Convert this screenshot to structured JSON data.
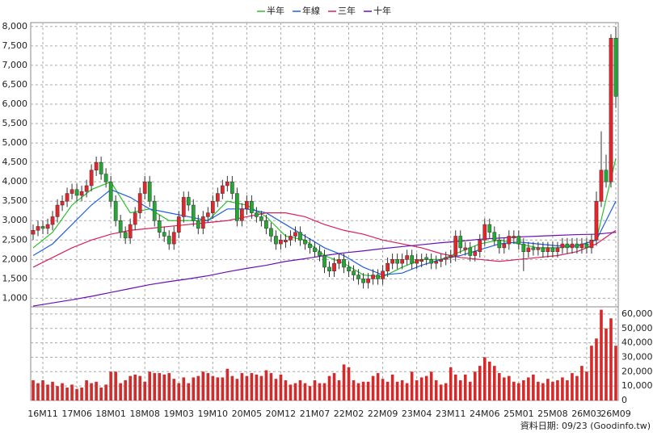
{
  "chart_data": {
    "type": "candlestick",
    "up_color": "#e8242a",
    "down_color": "#23a832",
    "volume_color": "#d42a2a",
    "grid": true,
    "xlim": [
      -0.5,
      120.5
    ],
    "xticks": [
      {
        "value": 2,
        "label": "16M11"
      },
      {
        "value": 9,
        "label": "17M06"
      },
      {
        "value": 16,
        "label": "18M01"
      },
      {
        "value": 23,
        "label": "18M08"
      },
      {
        "value": 30,
        "label": "19M03"
      },
      {
        "value": 37,
        "label": "19M10"
      },
      {
        "value": 44,
        "label": "20M05"
      },
      {
        "value": 51,
        "label": "20M12"
      },
      {
        "value": 58,
        "label": "21M07"
      },
      {
        "value": 65,
        "label": "22M02"
      },
      {
        "value": 72,
        "label": "22M09"
      },
      {
        "value": 79,
        "label": "23M04"
      },
      {
        "value": 86,
        "label": "23M11"
      },
      {
        "value": 93,
        "label": "24M06"
      },
      {
        "value": 100,
        "label": "25M01"
      },
      {
        "value": 107,
        "label": "25M08"
      },
      {
        "value": 114,
        "label": "26M03"
      },
      {
        "value": 120,
        "label": "26M09"
      }
    ],
    "ylim": [
      780,
      8100
    ],
    "yticks": [
      {
        "value": 1000,
        "label": "1,000"
      },
      {
        "value": 1500,
        "label": "1,500"
      },
      {
        "value": 2000,
        "label": "2,000"
      },
      {
        "value": 2500,
        "label": "2,500"
      },
      {
        "value": 3000,
        "label": "3,000"
      },
      {
        "value": 3500,
        "label": "3,500"
      },
      {
        "value": 4000,
        "label": "4,000"
      },
      {
        "value": 4500,
        "label": "4,500"
      },
      {
        "value": 5000,
        "label": "5,000"
      },
      {
        "value": 5500,
        "label": "5,500"
      },
      {
        "value": 6000,
        "label": "6,000"
      },
      {
        "value": 6500,
        "label": "6,500"
      },
      {
        "value": 7000,
        "label": "7,000"
      },
      {
        "value": 7500,
        "label": "7,500"
      },
      {
        "value": 8000,
        "label": "8,000"
      }
    ],
    "y2lim": [
      0,
      65000
    ],
    "y2ticks": [
      0,
      {
        "value": 10000,
        "label": "10,000"
      },
      {
        "value": 20000,
        "label": "20,000"
      },
      {
        "value": 30000,
        "label": "30,000"
      },
      {
        "value": 40000,
        "label": "40,000"
      },
      {
        "value": 50000,
        "label": "50,000"
      },
      {
        "value": 60000,
        "label": "60,000"
      }
    ],
    "candles": [
      [
        2650,
        2900,
        2500,
        2750
      ],
      [
        2750,
        3000,
        2600,
        2850
      ],
      [
        2850,
        3000,
        2650,
        2800
      ],
      [
        2800,
        3050,
        2650,
        2900
      ],
      [
        2900,
        3250,
        2750,
        3100
      ],
      [
        3100,
        3550,
        2950,
        3400
      ],
      [
        3400,
        3650,
        3250,
        3500
      ],
      [
        3500,
        3850,
        3350,
        3700
      ],
      [
        3700,
        3950,
        3550,
        3800
      ],
      [
        3800,
        3950,
        3500,
        3650
      ],
      [
        3650,
        3900,
        3500,
        3750
      ],
      [
        3750,
        4050,
        3600,
        3900
      ],
      [
        3900,
        4450,
        3750,
        4300
      ],
      [
        4300,
        4650,
        4150,
        4500
      ],
      [
        4500,
        4650,
        4050,
        4200
      ],
      [
        4200,
        4350,
        3850,
        4000
      ],
      [
        4000,
        4150,
        3350,
        3500
      ],
      [
        3500,
        3650,
        2850,
        3000
      ],
      [
        3000,
        3150,
        2550,
        2700
      ],
      [
        2700,
        2850,
        2400,
        2550
      ],
      [
        2550,
        3050,
        2400,
        2900
      ],
      [
        2900,
        3350,
        2750,
        3200
      ],
      [
        3200,
        3850,
        3050,
        3700
      ],
      [
        3700,
        4150,
        3550,
        4000
      ],
      [
        4000,
        4150,
        3350,
        3500
      ],
      [
        3500,
        3650,
        2850,
        3000
      ],
      [
        3000,
        3150,
        2550,
        2700
      ],
      [
        2700,
        2850,
        2450,
        2600
      ],
      [
        2600,
        2750,
        2250,
        2400
      ],
      [
        2400,
        2850,
        2250,
        2700
      ],
      [
        2700,
        3250,
        2550,
        3100
      ],
      [
        3100,
        3750,
        2950,
        3600
      ],
      [
        3600,
        3750,
        3250,
        3400
      ],
      [
        3400,
        3550,
        2850,
        3000
      ],
      [
        3000,
        3150,
        2650,
        2800
      ],
      [
        2800,
        3250,
        2650,
        3100
      ],
      [
        3100,
        3350,
        2950,
        3200
      ],
      [
        3200,
        3650,
        3050,
        3500
      ],
      [
        3500,
        3850,
        3350,
        3700
      ],
      [
        3700,
        4050,
        3550,
        3900
      ],
      [
        3900,
        4150,
        3750,
        4000
      ],
      [
        4000,
        4150,
        3550,
        3700
      ],
      [
        3700,
        3850,
        2850,
        3000
      ],
      [
        3000,
        3450,
        2850,
        3300
      ],
      [
        3300,
        3650,
        3150,
        3500
      ],
      [
        3500,
        3650,
        3050,
        3200
      ],
      [
        3200,
        3350,
        2950,
        3100
      ],
      [
        3100,
        3250,
        2850,
        3000
      ],
      [
        3000,
        3150,
        2650,
        2800
      ],
      [
        2800,
        2950,
        2450,
        2600
      ],
      [
        2600,
        2750,
        2250,
        2400
      ],
      [
        2400,
        2650,
        2250,
        2500
      ],
      [
        2450,
        2650,
        2300,
        2500
      ],
      [
        2500,
        2750,
        2350,
        2600
      ],
      [
        2600,
        2850,
        2450,
        2700
      ],
      [
        2700,
        2850,
        2350,
        2500
      ],
      [
        2500,
        2650,
        2250,
        2400
      ],
      [
        2400,
        2550,
        2150,
        2300
      ],
      [
        2300,
        2450,
        2050,
        2200
      ],
      [
        2200,
        2350,
        1950,
        2100
      ],
      [
        2100,
        2250,
        1650,
        1800
      ],
      [
        1800,
        1950,
        1550,
        1700
      ],
      [
        1700,
        2050,
        1550,
        1900
      ],
      [
        1900,
        2150,
        1750,
        2000
      ],
      [
        2000,
        2150,
        1650,
        1800
      ],
      [
        1800,
        1950,
        1550,
        1700
      ],
      [
        1700,
        1850,
        1450,
        1600
      ],
      [
        1600,
        1750,
        1350,
        1500
      ],
      [
        1500,
        1650,
        1250,
        1400
      ],
      [
        1400,
        1650,
        1250,
        1500
      ],
      [
        1500,
        1750,
        1350,
        1600
      ],
      [
        1600,
        1750,
        1350,
        1500
      ],
      [
        1500,
        1850,
        1350,
        1700
      ],
      [
        1700,
        2050,
        1550,
        1900
      ],
      [
        1900,
        2150,
        1750,
        2000
      ],
      [
        2000,
        2150,
        1750,
        1900
      ],
      [
        1900,
        2150,
        1750,
        2000
      ],
      [
        2000,
        2250,
        1850,
        2100
      ],
      [
        2100,
        2250,
        1750,
        1900
      ],
      [
        1900,
        2150,
        1750,
        2000
      ],
      [
        1950,
        2150,
        1800,
        2000
      ],
      [
        2050,
        2150,
        1850,
        2000
      ],
      [
        2000,
        2150,
        1750,
        1900
      ],
      [
        1900,
        2100,
        1750,
        1950
      ],
      [
        1950,
        2150,
        1800,
        2000
      ],
      [
        2000,
        2200,
        1850,
        2050
      ],
      [
        2050,
        2250,
        1900,
        2100
      ],
      [
        2100,
        2750,
        1950,
        2600
      ],
      [
        2600,
        2750,
        2150,
        2300
      ],
      [
        2250,
        2450,
        2100,
        2300
      ],
      [
        2300,
        2450,
        1950,
        2100
      ],
      [
        2100,
        2350,
        1950,
        2200
      ],
      [
        2200,
        2650,
        2050,
        2500
      ],
      [
        2500,
        3050,
        2350,
        2900
      ],
      [
        2900,
        3050,
        2550,
        2700
      ],
      [
        2700,
        2850,
        2350,
        2500
      ],
      [
        2500,
        2650,
        2150,
        2300
      ],
      [
        2300,
        2550,
        2150,
        2400
      ],
      [
        2400,
        2750,
        2250,
        2600
      ],
      [
        2550,
        2750,
        2400,
        2600
      ],
      [
        2600,
        2750,
        2250,
        2400
      ],
      [
        2400,
        2550,
        1700,
        2200
      ],
      [
        2200,
        2450,
        2050,
        2300
      ],
      [
        2300,
        2450,
        2100,
        2250
      ],
      [
        2250,
        2450,
        2100,
        2300
      ],
      [
        2300,
        2450,
        2050,
        2200
      ],
      [
        2200,
        2450,
        2050,
        2300
      ],
      [
        2300,
        2450,
        2050,
        2200
      ],
      [
        2200,
        2450,
        2050,
        2300
      ],
      [
        2300,
        2550,
        2150,
        2400
      ],
      [
        2400,
        2550,
        2150,
        2300
      ],
      [
        2300,
        2550,
        2150,
        2400
      ],
      [
        2400,
        2550,
        2150,
        2300
      ],
      [
        2300,
        2550,
        2150,
        2400
      ],
      [
        2400,
        2550,
        2150,
        2300
      ],
      [
        2300,
        2650,
        2150,
        2500
      ],
      [
        2500,
        3750,
        2350,
        3500
      ],
      [
        3500,
        5300,
        3350,
        4300
      ],
      [
        4300,
        4700,
        3850,
        4000
      ],
      [
        4000,
        7800,
        3850,
        7700
      ],
      [
        7700,
        8000,
        5900,
        6200
      ]
    ],
    "volume": [
      14000,
      12000,
      14000,
      11000,
      13000,
      10000,
      12000,
      9000,
      11000,
      8000,
      9000,
      14000,
      12000,
      13000,
      9000,
      11000,
      20000,
      20000,
      12000,
      14000,
      17000,
      18000,
      17000,
      13000,
      20000,
      19000,
      19000,
      18000,
      19000,
      15000,
      12000,
      16000,
      12000,
      16000,
      17000,
      20000,
      19000,
      17000,
      16000,
      16000,
      22000,
      17000,
      15000,
      19000,
      17000,
      19000,
      18000,
      17000,
      21000,
      19000,
      15000,
      18000,
      14000,
      11000,
      12000,
      14000,
      12000,
      10000,
      14000,
      12000,
      12000,
      17000,
      19000,
      14000,
      25000,
      23000,
      14000,
      12000,
      13000,
      13000,
      17000,
      19000,
      15000,
      13000,
      18000,
      13000,
      14000,
      12000,
      20000,
      14000,
      16000,
      17000,
      20000,
      14000,
      11000,
      12000,
      23000,
      18000,
      14000,
      18000,
      13000,
      20000,
      24000,
      30000,
      27000,
      24000,
      19000,
      16000,
      17000,
      13000,
      12000,
      14000,
      16000,
      18000,
      13000,
      12000,
      15000,
      13000,
      14000,
      16000,
      14000,
      19000,
      17000,
      24000,
      20000,
      38000,
      43000,
      63000,
      50000,
      57000,
      38000
    ],
    "ma_x": [
      0,
      4,
      8,
      12,
      16,
      20,
      24,
      28,
      32,
      36,
      40,
      44,
      48,
      52,
      56,
      60,
      64,
      68,
      72,
      76,
      80,
      84,
      88,
      92,
      96,
      100,
      104,
      108,
      112,
      116,
      120
    ],
    "series": [
      {
        "name": "半年",
        "color": "#2cc02c",
        "values": [
          2300,
          2700,
          3400,
          3800,
          4000,
          3200,
          3300,
          3000,
          3000,
          3000,
          3500,
          3400,
          3100,
          2600,
          2500,
          2100,
          1900,
          1600,
          1550,
          1800,
          2000,
          2000,
          2200,
          2400,
          2500,
          2400,
          2300,
          2300,
          2350,
          2500,
          4600
        ]
      },
      {
        "name": "年線",
        "color": "#1f5fdf",
        "values": [
          2100,
          2400,
          2900,
          3400,
          3800,
          3600,
          3300,
          3200,
          3100,
          3000,
          3300,
          3300,
          3200,
          2900,
          2600,
          2300,
          2100,
          1800,
          1600,
          1650,
          1850,
          2000,
          2100,
          2250,
          2400,
          2450,
          2400,
          2350,
          2350,
          2500,
          3500
        ]
      },
      {
        "name": "三年",
        "color": "#d8205a",
        "values": [
          1800,
          2050,
          2300,
          2500,
          2650,
          2750,
          2800,
          2850,
          2900,
          2950,
          3000,
          3100,
          3200,
          3200,
          3100,
          2900,
          2750,
          2650,
          2500,
          2400,
          2300,
          2150,
          2050,
          2000,
          1950,
          2000,
          2050,
          2100,
          2200,
          2400,
          2750
        ]
      },
      {
        "name": "十年",
        "color": "#6a10b0",
        "values": [
          800,
          880,
          960,
          1050,
          1150,
          1250,
          1350,
          1430,
          1500,
          1580,
          1680,
          1770,
          1850,
          1950,
          2020,
          2100,
          2170,
          2220,
          2280,
          2330,
          2380,
          2430,
          2470,
          2520,
          2550,
          2580,
          2600,
          2620,
          2640,
          2650,
          2700
        ]
      }
    ],
    "source_note": "資料日期: 09/23  (Goodinfo.tw)"
  }
}
